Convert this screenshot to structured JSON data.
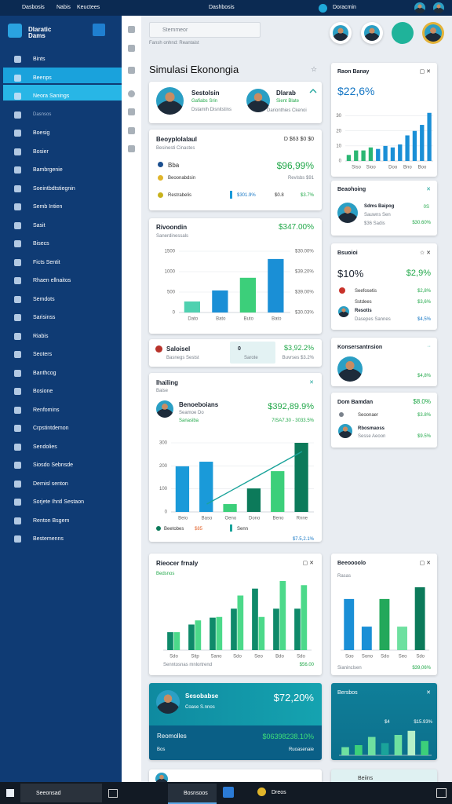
{
  "topbar": {
    "tabs": [
      "Dasbosis",
      "Nabis",
      "Keuctees"
    ],
    "title": "Dashbosis",
    "account": "Doracmin"
  },
  "sidebar": {
    "logo": "Dlaratic Dams",
    "items": [
      "Bints",
      "Beenps",
      "Neora Sanings",
      "Dasnsos",
      "Boesig",
      "Bosier",
      "Bambrgenie",
      "Soeintbdtstiegnin",
      "Semb Intien",
      "Sasit",
      "Bisecs",
      "Ficts Sentit",
      "Rhaen ellnaitos",
      "Semdots",
      "Sarisinss",
      "Riabis",
      "Seoters",
      "Banthcog",
      "Bosione",
      "Renfomins",
      "Crpstintdemon",
      "Sendolies",
      "Siosdo Sebnsde",
      "Dernisl senton",
      "Sorjete Ihntl Sestaon",
      "Renton Bsgem",
      "Bestemenns"
    ]
  },
  "search": {
    "placeholder": "Stemmeor",
    "caption": "Fansh onhnd: Reantaist"
  },
  "page_title": "Simulasi Ekonongia",
  "profiles": [
    {
      "name": "Sestolsin",
      "role": "Gafiabs Srin",
      "note": "Dstamih Disnitstins"
    },
    {
      "name": "Dlarab",
      "role": "Sient Blate",
      "note": "Darionthies Ckenoi"
    }
  ],
  "summary": {
    "title": "Beoyplolalaul",
    "meta": "D  $63 $0 $0",
    "subtitle": "Besinesti Cinastes",
    "rows": [
      {
        "label": "Bba",
        "value": "$96,99%"
      },
      {
        "label": "Beoonabdsin",
        "value": "Revlsbs $91"
      },
      {
        "label": "Restrabelis",
        "values": [
          "$301.9%",
          "$0.8",
          "$3.7%"
        ]
      }
    ]
  },
  "cards": {
    "status": {
      "title": "Saloisel",
      "subtitle": "Basnegs Sestst",
      "badge": "0",
      "badge_label": "Sarote",
      "value": "$3,92.2%",
      "note": "Buvrses $3.2%"
    },
    "schedule": {
      "title": "Beaohoing",
      "name": "Sdms Baipog",
      "role": "Sauwns Sen",
      "note": "$36 Sadis",
      "value": "0S",
      "change": "$30.60%"
    },
    "budget": {
      "title": "Bsuoioi",
      "headline": "$10%",
      "change": "$2,9%",
      "rows": [
        {
          "label": "Seefosetis",
          "value": "$2,8%"
        },
        {
          "label": "Sstdees",
          "value": "$3,6%"
        },
        {
          "label": "Resotis",
          "sub": "Dasepes Sannes",
          "value": "$4,5%"
        }
      ]
    },
    "contact": {
      "title": "Konsersantnsion",
      "value": "$4,8%"
    },
    "domain": {
      "title": "Dom Bamdan",
      "value": "$8.0%",
      "rows": [
        {
          "label": "Seoonaer",
          "value": "$3.8%"
        },
        {
          "label": "Rbosmaoss",
          "sub": "Sesse Aeoon",
          "value": "$9.5%"
        }
      ]
    },
    "highlight": {
      "name": "Sesobabse",
      "role": "Coase S.nnos",
      "value": "$72,20%",
      "label": "Reomolles",
      "amount": "$06398238.10%",
      "note_label": "Bos",
      "note": "Ruoasenaie"
    },
    "footer": "Beiins"
  },
  "charts": [
    {
      "type": "bar",
      "title": "Raon Banay",
      "headline": "$22,6%",
      "categories": [
        null,
        "Siso",
        null,
        "Sioo",
        null,
        null,
        "Doo",
        null,
        "Bno",
        null,
        "Boo",
        null
      ],
      "values": [
        4,
        7,
        7,
        9,
        8,
        10,
        9,
        11,
        17,
        20,
        24,
        32
      ],
      "colors": [
        "#2bb673",
        "#2bb673",
        "#2bb673",
        "#2bb673",
        "#1a8fd6",
        "#1a8fd6",
        "#1a8fd6",
        "#1a8fd6",
        "#1a8fd6",
        "#1a8fd6",
        "#1a8fd6",
        "#1a8fd6"
      ],
      "ylim": [
        0,
        35
      ],
      "yticks": [
        0,
        10,
        20,
        30
      ]
    },
    {
      "type": "bar",
      "title": "Rivoondin",
      "headline": "$347.00%",
      "subtitle": "Sanerdinessals",
      "categories": [
        "Dato",
        "Bato",
        "Buto",
        "Bato"
      ],
      "values": [
        270,
        540,
        850,
        1310
      ],
      "colors": [
        "#4fd1b0",
        "#1a8fd6",
        "#3ccf7a",
        "#1a8fd6"
      ],
      "ylim": [
        0,
        1500
      ],
      "yticks": [
        0,
        500,
        1000,
        1500
      ],
      "right_labels": [
        "$30.00%",
        "$39.20%",
        "$39.00%",
        "$30.03%"
      ]
    },
    {
      "type": "bar",
      "title": "Ihailing",
      "subtitle": "Baise",
      "profile": {
        "name": "Benoeboians",
        "role": "Seamoe Do",
        "note": "Sanasiba",
        "value": "$392,89.9%",
        "change": "7ISA7.30 - 3033.5%"
      },
      "categories": [
        "Beio",
        "Baso",
        "Oeno",
        "Dono",
        "Beno",
        "Rnne"
      ],
      "series": [
        {
          "name": "Beetobes",
          "type": "bar",
          "colors": [
            "#1a9ad9",
            "#1a9ad9",
            "#3ccf7a",
            "#0c7a5a",
            "#3ccf7a",
            "#0c7a5a"
          ],
          "values": [
            198,
            218,
            34,
            102,
            177,
            300
          ]
        },
        {
          "name": "Senn",
          "type": "line",
          "color": "#1aa39a",
          "values": [
            null,
            34,
            91,
            148,
            205,
            262
          ]
        }
      ],
      "legend_note": "$85",
      "footer": "$7.5,2.1%",
      "ylim": [
        0,
        300
      ],
      "yticks": [
        0,
        100,
        200,
        300
      ]
    },
    {
      "type": "bar",
      "title": "Rieocer frnaly",
      "subtitle": "Bedsnos",
      "categories": [
        "Sdo",
        "Sitp",
        "Sano",
        "Sdo",
        "Seo",
        "Bdo",
        "Sdo"
      ],
      "series": [
        {
          "type": "bar",
          "color": "#0f8a6a",
          "values": [
            26,
            37,
            47,
            60,
            89,
            60,
            60
          ]
        },
        {
          "type": "bar",
          "color": "#4cd98a",
          "values": [
            26,
            43,
            48,
            79,
            48,
            100,
            94
          ]
        }
      ],
      "footer": "Senntosnas mnlortrend",
      "footer_value": "$56.00",
      "ylim": [
        0,
        100
      ]
    },
    {
      "type": "bar",
      "title": "Beeoooolo",
      "subtitle": "Rasas",
      "categories": [
        "Soo",
        "Sono",
        "Sdo",
        "Seo",
        "Sdo"
      ],
      "values": [
        74,
        34,
        74,
        34,
        91
      ],
      "colors": [
        "#1a8fd6",
        "#1a8fd6",
        "#23a85a",
        "#6ee0a0",
        "#0c7a5a"
      ],
      "footer": "Sianinclsen",
      "footer_value": "$39,06%",
      "ylim": [
        0,
        100
      ]
    },
    {
      "type": "bar",
      "title": "Bersbos",
      "categories": [
        null,
        null,
        null,
        null,
        null,
        null,
        null
      ],
      "values": [
        20,
        25,
        45,
        30,
        50,
        60,
        35
      ],
      "colors": [
        "#6ee0a0",
        "#3ccf7a",
        "#6ee0a0",
        "#1aa39a",
        "#6ee0a0",
        "#b6f0c8",
        "#3ccf7a"
      ],
      "labels": [
        "$4",
        "$15.93%"
      ],
      "ylim": [
        0,
        100
      ]
    }
  ],
  "taskbar": {
    "search": "Seeonsad",
    "apps": [
      "Bosnsoos",
      "Dreos"
    ]
  }
}
